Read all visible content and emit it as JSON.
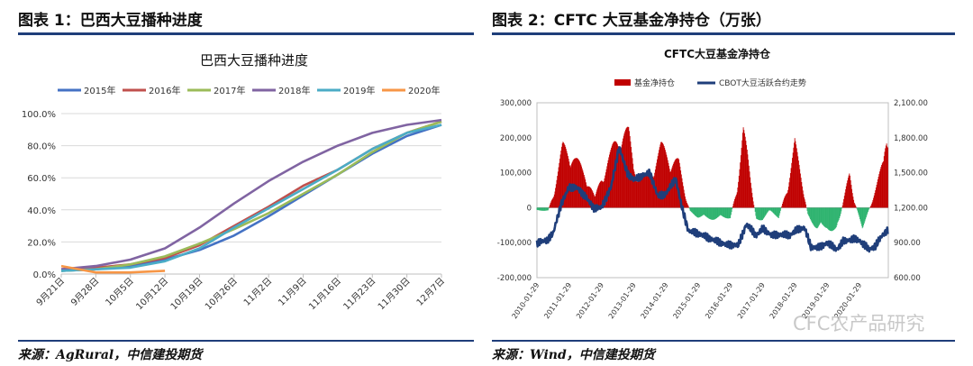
{
  "left": {
    "panel_title": "图表 1：巴西大豆播种进度",
    "source": "来源：AgRural，中信建投期货"
  },
  "right": {
    "panel_title": "图表 2：CFTC 大豆基金净持仓（万张）",
    "source": "来源：Wind，中信建投期货"
  },
  "watermark": "CFC农产品研究",
  "chart_data": [
    {
      "type": "line",
      "title": "巴西大豆播种进度",
      "x": [
        "9月21日",
        "9月28日",
        "10月5日",
        "10月12日",
        "10月19日",
        "10月26日",
        "11月2日",
        "11月9日",
        "11月16日",
        "11月23日",
        "11月30日",
        "12月7日"
      ],
      "ylim": [
        0,
        100
      ],
      "yticks": [
        "0.0%",
        "20.0%",
        "40.0%",
        "60.0%",
        "80.0%",
        "100.0%"
      ],
      "grid": true,
      "legend": "top",
      "series": [
        {
          "name": "2015年",
          "color": "#4472c4",
          "values": [
            2,
            3,
            5,
            9,
            15,
            24,
            36,
            49,
            62,
            75,
            86,
            93
          ]
        },
        {
          "name": "2016年",
          "color": "#c0504d",
          "values": [
            3,
            4,
            6,
            10,
            18,
            30,
            42,
            55,
            65,
            78,
            88,
            95
          ]
        },
        {
          "name": "2017年",
          "color": "#9bbb59",
          "values": [
            2,
            3,
            6,
            11,
            19,
            28,
            38,
            50,
            62,
            76,
            88,
            95
          ]
        },
        {
          "name": "2018年",
          "color": "#8064a2",
          "values": [
            3,
            5,
            9,
            16,
            29,
            44,
            58,
            70,
            80,
            88,
            93,
            96
          ]
        },
        {
          "name": "2019年",
          "color": "#4bacc6",
          "values": [
            2,
            3,
            4,
            8,
            16,
            29,
            41,
            53,
            65,
            78,
            88,
            93
          ]
        },
        {
          "name": "2020年",
          "color": "#f79646",
          "values": [
            5,
            1,
            1,
            2,
            null,
            null,
            null,
            null,
            null,
            null,
            null,
            null
          ]
        }
      ]
    },
    {
      "type": "bar+line",
      "title": "CFTC大豆基金净持仓",
      "x": [
        "2010-01-29",
        "2011-01-29",
        "2012-01-29",
        "2013-01-29",
        "2014-01-29",
        "2015-01-29",
        "2016-01-29",
        "2017-01-29",
        "2018-01-29",
        "2019-01-29",
        "2020-01-29"
      ],
      "ylim_left": [
        -200000,
        300000
      ],
      "yticks_left": [
        "-200,000",
        "-100,000",
        "0",
        "100,000",
        "200,000",
        "300,000"
      ],
      "ylim_right": [
        600,
        2100
      ],
      "yticks_right": [
        "600.00",
        "900.00",
        "1,200.00",
        "1,500.00",
        "1,800.00",
        "2,100.00"
      ],
      "legend": "top",
      "series": [
        {
          "name": "基金净持仓",
          "kind": "bar",
          "color_pos": "#c00000",
          "color_neg": "#2db36e",
          "keypoints": [
            [
              2010.0,
              -10000
            ],
            [
              2010.35,
              -8000
            ],
            [
              2010.55,
              60000
            ],
            [
              2010.8,
              190000
            ],
            [
              2011.0,
              190000
            ],
            [
              2011.2,
              150000
            ],
            [
              2011.5,
              110000
            ],
            [
              2011.8,
              30000
            ],
            [
              2012.0,
              100000
            ],
            [
              2012.3,
              170000
            ],
            [
              2012.6,
              250000
            ],
            [
              2012.85,
              230000
            ],
            [
              2013.0,
              130000
            ],
            [
              2013.3,
              90000
            ],
            [
              2013.55,
              120000
            ],
            [
              2013.85,
              190000
            ],
            [
              2014.15,
              160000
            ],
            [
              2014.4,
              140000
            ],
            [
              2014.6,
              40000
            ],
            [
              2014.75,
              -10000
            ],
            [
              2015.0,
              -30000
            ],
            [
              2015.5,
              -35000
            ],
            [
              2016.0,
              -30000
            ],
            [
              2016.2,
              60000
            ],
            [
              2016.4,
              240000
            ],
            [
              2016.55,
              150000
            ],
            [
              2016.8,
              -40000
            ],
            [
              2017.0,
              -35000
            ],
            [
              2017.2,
              -10000
            ],
            [
              2017.5,
              -30000
            ],
            [
              2017.8,
              80000
            ],
            [
              2018.0,
              200000
            ],
            [
              2018.2,
              100000
            ],
            [
              2018.4,
              -20000
            ],
            [
              2018.7,
              -70000
            ],
            [
              2019.0,
              -60000
            ],
            [
              2019.3,
              -80000
            ],
            [
              2019.55,
              40000
            ],
            [
              2019.7,
              110000
            ],
            [
              2019.85,
              20000
            ],
            [
              2020.1,
              -60000
            ],
            [
              2020.4,
              20000
            ],
            [
              2020.6,
              90000
            ],
            [
              2020.75,
              150000
            ],
            [
              2020.85,
              270000
            ]
          ]
        },
        {
          "name": "CBOT大豆活跃合约走势",
          "kind": "line",
          "color": "#1f3e7a",
          "keypoints": [
            [
              2010.0,
              900
            ],
            [
              2010.3,
              920
            ],
            [
              2010.5,
              980
            ],
            [
              2010.75,
              1230
            ],
            [
              2011.0,
              1380
            ],
            [
              2011.25,
              1370
            ],
            [
              2011.5,
              1300
            ],
            [
              2011.75,
              1200
            ],
            [
              2012.0,
              1200
            ],
            [
              2012.3,
              1380
            ],
            [
              2012.55,
              1720
            ],
            [
              2012.8,
              1500
            ],
            [
              2013.0,
              1440
            ],
            [
              2013.3,
              1480
            ],
            [
              2013.5,
              1500
            ],
            [
              2013.75,
              1300
            ],
            [
              2014.0,
              1320
            ],
            [
              2014.3,
              1450
            ],
            [
              2014.5,
              1200
            ],
            [
              2014.7,
              1000
            ],
            [
              2015.0,
              980
            ],
            [
              2015.5,
              920
            ],
            [
              2015.9,
              880
            ],
            [
              2016.25,
              880
            ],
            [
              2016.5,
              1060
            ],
            [
              2016.8,
              960
            ],
            [
              2017.0,
              1020
            ],
            [
              2017.3,
              960
            ],
            [
              2017.6,
              970
            ],
            [
              2017.85,
              960
            ],
            [
              2018.0,
              1000
            ],
            [
              2018.3,
              1030
            ],
            [
              2018.5,
              860
            ],
            [
              2018.8,
              860
            ],
            [
              2019.0,
              900
            ],
            [
              2019.3,
              840
            ],
            [
              2019.5,
              910
            ],
            [
              2019.8,
              930
            ],
            [
              2020.0,
              920
            ],
            [
              2020.3,
              840
            ],
            [
              2020.5,
              870
            ],
            [
              2020.7,
              960
            ],
            [
              2020.85,
              1000
            ]
          ]
        }
      ]
    }
  ]
}
